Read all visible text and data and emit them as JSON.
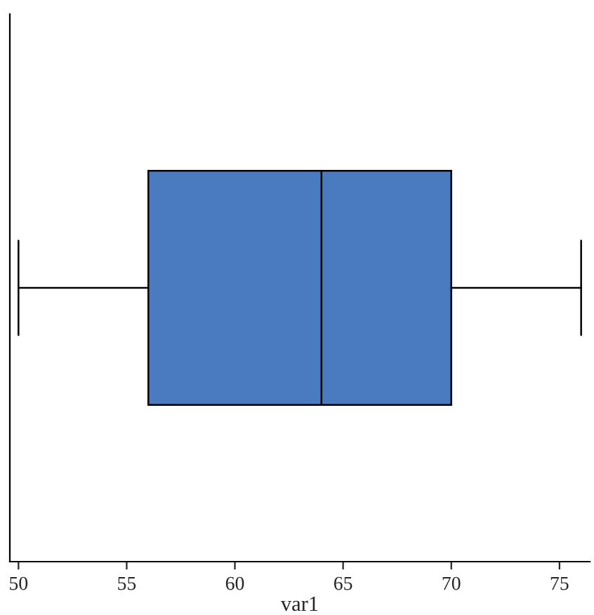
{
  "chart_data": {
    "type": "box",
    "orientation": "horizontal",
    "xlabel": "var1",
    "categories": [
      null
    ],
    "boxes": [
      {
        "low": 50,
        "q1": 56,
        "median": 64,
        "q3": 70,
        "high": 76
      }
    ],
    "color": "#4a7abf",
    "xlim": [
      49.6,
      76.4
    ],
    "xticks": [
      50,
      55,
      60,
      65,
      70,
      75
    ],
    "tick_labels": "x"
  }
}
